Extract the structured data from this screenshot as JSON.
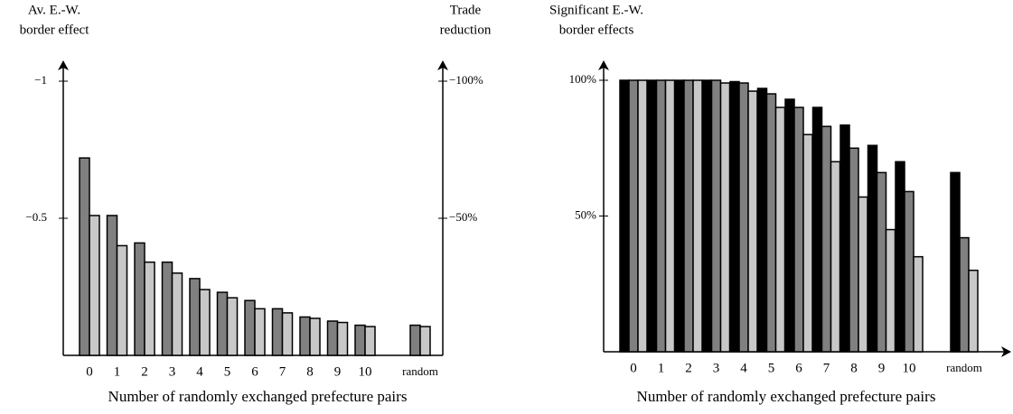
{
  "chart_data": [
    {
      "type": "bar",
      "ylabel": [
        "Av. E.-W.",
        "border effect"
      ],
      "y2label": [
        "Trade",
        "reduction"
      ],
      "xlabel": "Number of randomly exchanged prefecture pairs",
      "categories": [
        "0",
        "1",
        "2",
        "3",
        "4",
        "5",
        "6",
        "7",
        "8",
        "9",
        "10",
        null,
        "random"
      ],
      "series": [
        {
          "color": "#808080",
          "values": [
            -0.72,
            -0.51,
            -0.41,
            -0.34,
            -0.28,
            -0.23,
            -0.2,
            -0.17,
            -0.14,
            -0.125,
            -0.11,
            null,
            -0.11
          ]
        },
        {
          "color": "#c8c8c8",
          "values": [
            -0.51,
            -0.4,
            -0.34,
            -0.3,
            -0.24,
            -0.21,
            -0.17,
            -0.155,
            -0.135,
            -0.12,
            -0.105,
            null,
            -0.105
          ]
        }
      ],
      "ylim": [
        0,
        -1
      ],
      "yticks": [
        {
          "value": -1,
          "label": "−1"
        },
        {
          "value": -0.5,
          "label": "−0.5"
        }
      ],
      "y2lim": [
        0,
        -100
      ],
      "y2ticks": [
        {
          "value": -100,
          "label": "−100%"
        },
        {
          "value": -50,
          "label": "−50%"
        }
      ]
    },
    {
      "type": "bar",
      "ylabel": [
        "Significant E.-W.",
        "border effects"
      ],
      "xlabel": "Number of randomly exchanged prefecture pairs",
      "categories": [
        "0",
        "1",
        "2",
        "3",
        "4",
        "5",
        "6",
        "7",
        "8",
        "9",
        "10",
        null,
        "random"
      ],
      "series": [
        {
          "color": "#000000",
          "values": [
            100,
            100,
            100,
            100,
            99.5,
            97,
            93,
            90,
            83.5,
            76,
            70,
            null,
            66
          ]
        },
        {
          "color": "#808080",
          "values": [
            100,
            100,
            100,
            100,
            99,
            95,
            90,
            83,
            75,
            66,
            59,
            null,
            42
          ]
        },
        {
          "color": "#c8c8c8",
          "values": [
            100,
            100,
            100,
            99,
            96,
            90,
            80,
            70,
            57,
            45,
            35,
            null,
            30
          ]
        }
      ],
      "ylim": [
        0,
        100
      ],
      "yticks": [
        {
          "value": 50,
          "label": "50%"
        },
        {
          "value": 100,
          "label": "100%"
        }
      ]
    }
  ]
}
